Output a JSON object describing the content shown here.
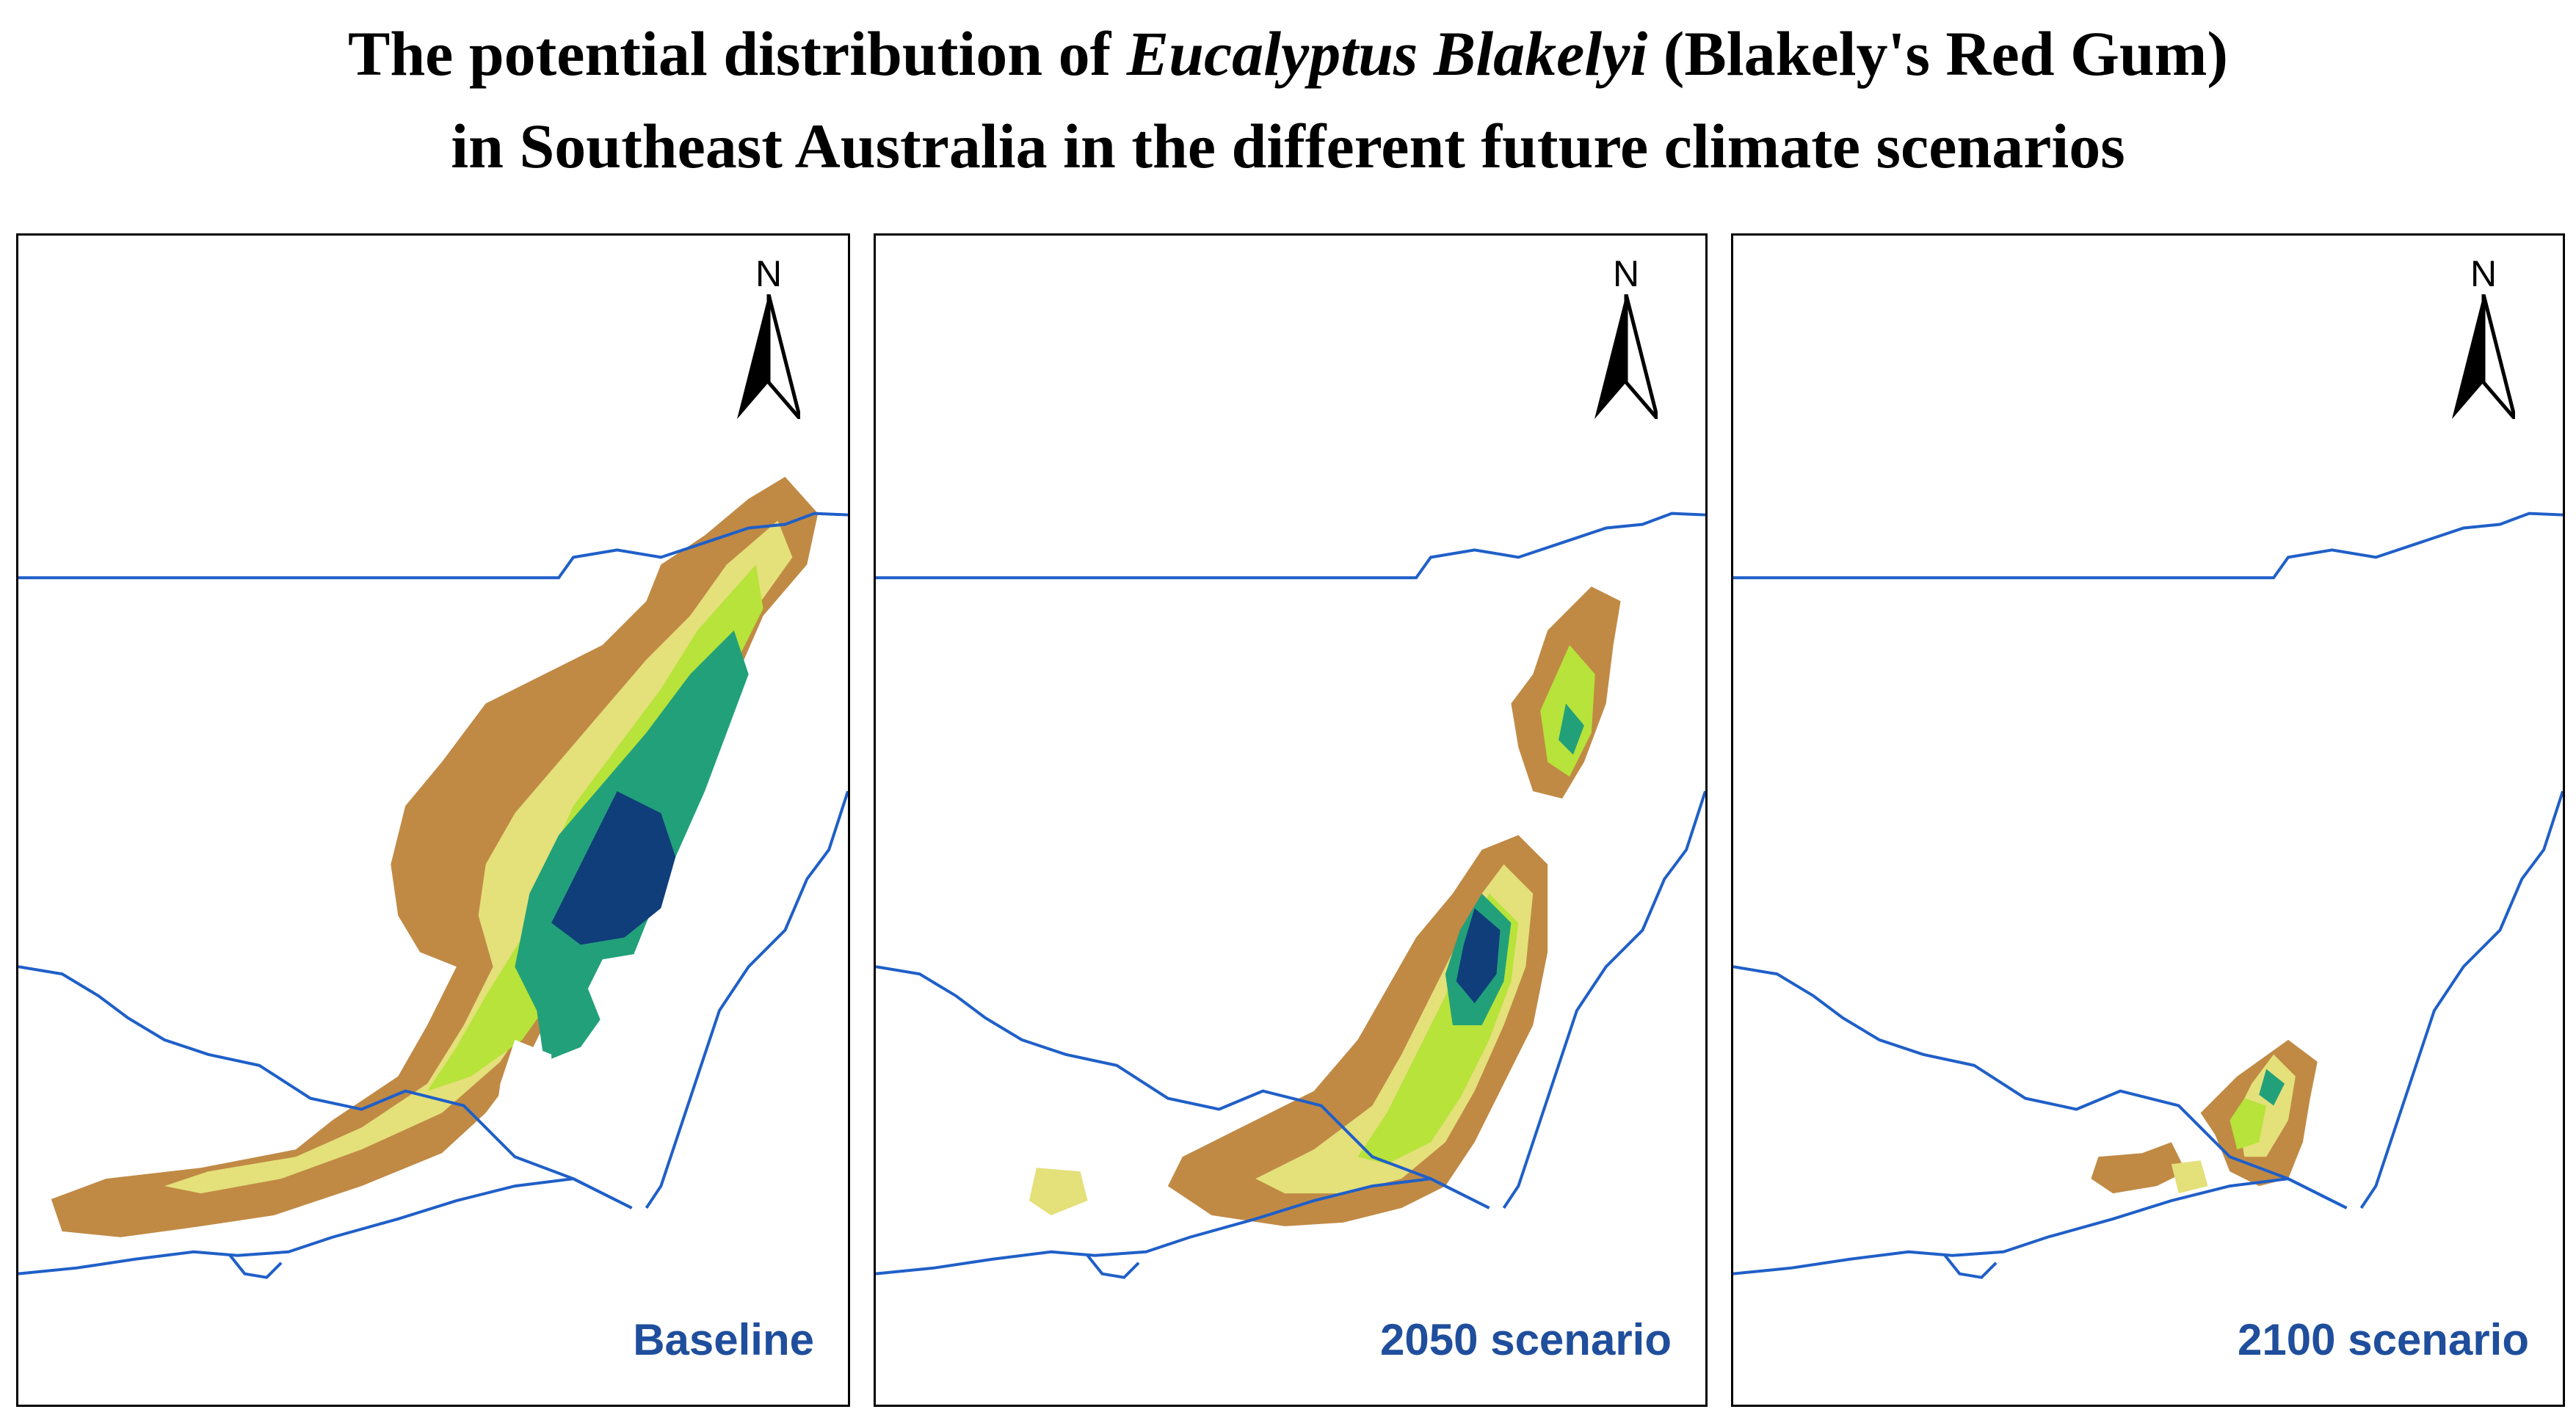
{
  "title": {
    "line1_before": "The potential distribution of ",
    "line1_italic": "Eucalyptus Blakelyi",
    "line1_after": " (Blakely's Red Gum)",
    "line2": "in Southeast Australia in the different future climate scenarios"
  },
  "north_arrow": {
    "label": "N",
    "icon": "north-arrow-icon"
  },
  "panels": [
    {
      "label": "Baseline"
    },
    {
      "label": "2050 scenario"
    },
    {
      "label": "2100 scenario"
    }
  ],
  "colors": {
    "border_lines": "#1f5fc8",
    "suitability_low": "#c08a45",
    "suitability_low_mid": "#e4e07a",
    "suitability_mid": "#b7e33a",
    "suitability_high": "#22a07a",
    "suitability_very_high": "#103e7a",
    "label_text": "#1f4e9c"
  }
}
